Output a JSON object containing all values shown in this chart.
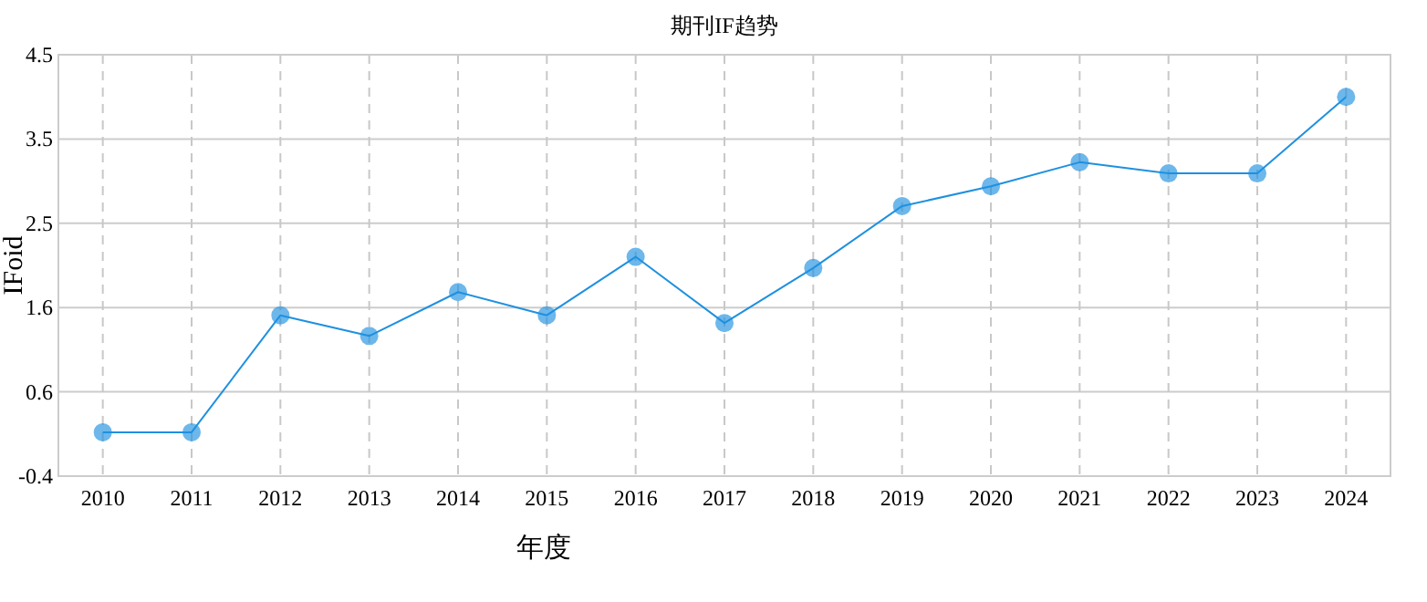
{
  "chart_data": {
    "type": "line",
    "title": "期刊IF趋势",
    "xlabel": "年度",
    "ylabel": "IFoid",
    "categories": [
      "2010",
      "2011",
      "2012",
      "2013",
      "2014",
      "2015",
      "2016",
      "2017",
      "2018",
      "2019",
      "2020",
      "2021",
      "2022",
      "2023",
      "2024"
    ],
    "series": [
      {
        "color": "#1e90e0",
        "values": [
          0.11,
          0.11,
          1.47,
          1.23,
          1.74,
          1.47,
          2.15,
          1.38,
          2.02,
          2.74,
          2.97,
          3.25,
          3.12,
          3.12,
          4.01
        ]
      }
    ],
    "ylim": [
      -0.4,
      4.5
    ],
    "yticks": [
      -0.4,
      {
        "value": 0.58,
        "label": "0.6"
      },
      {
        "value": 1.56,
        "label": "1.6"
      },
      {
        "value": 2.54,
        "label": "2.5"
      },
      {
        "value": 3.52,
        "label": "3.5"
      },
      4.5
    ],
    "grid": true,
    "marker": "circle"
  }
}
